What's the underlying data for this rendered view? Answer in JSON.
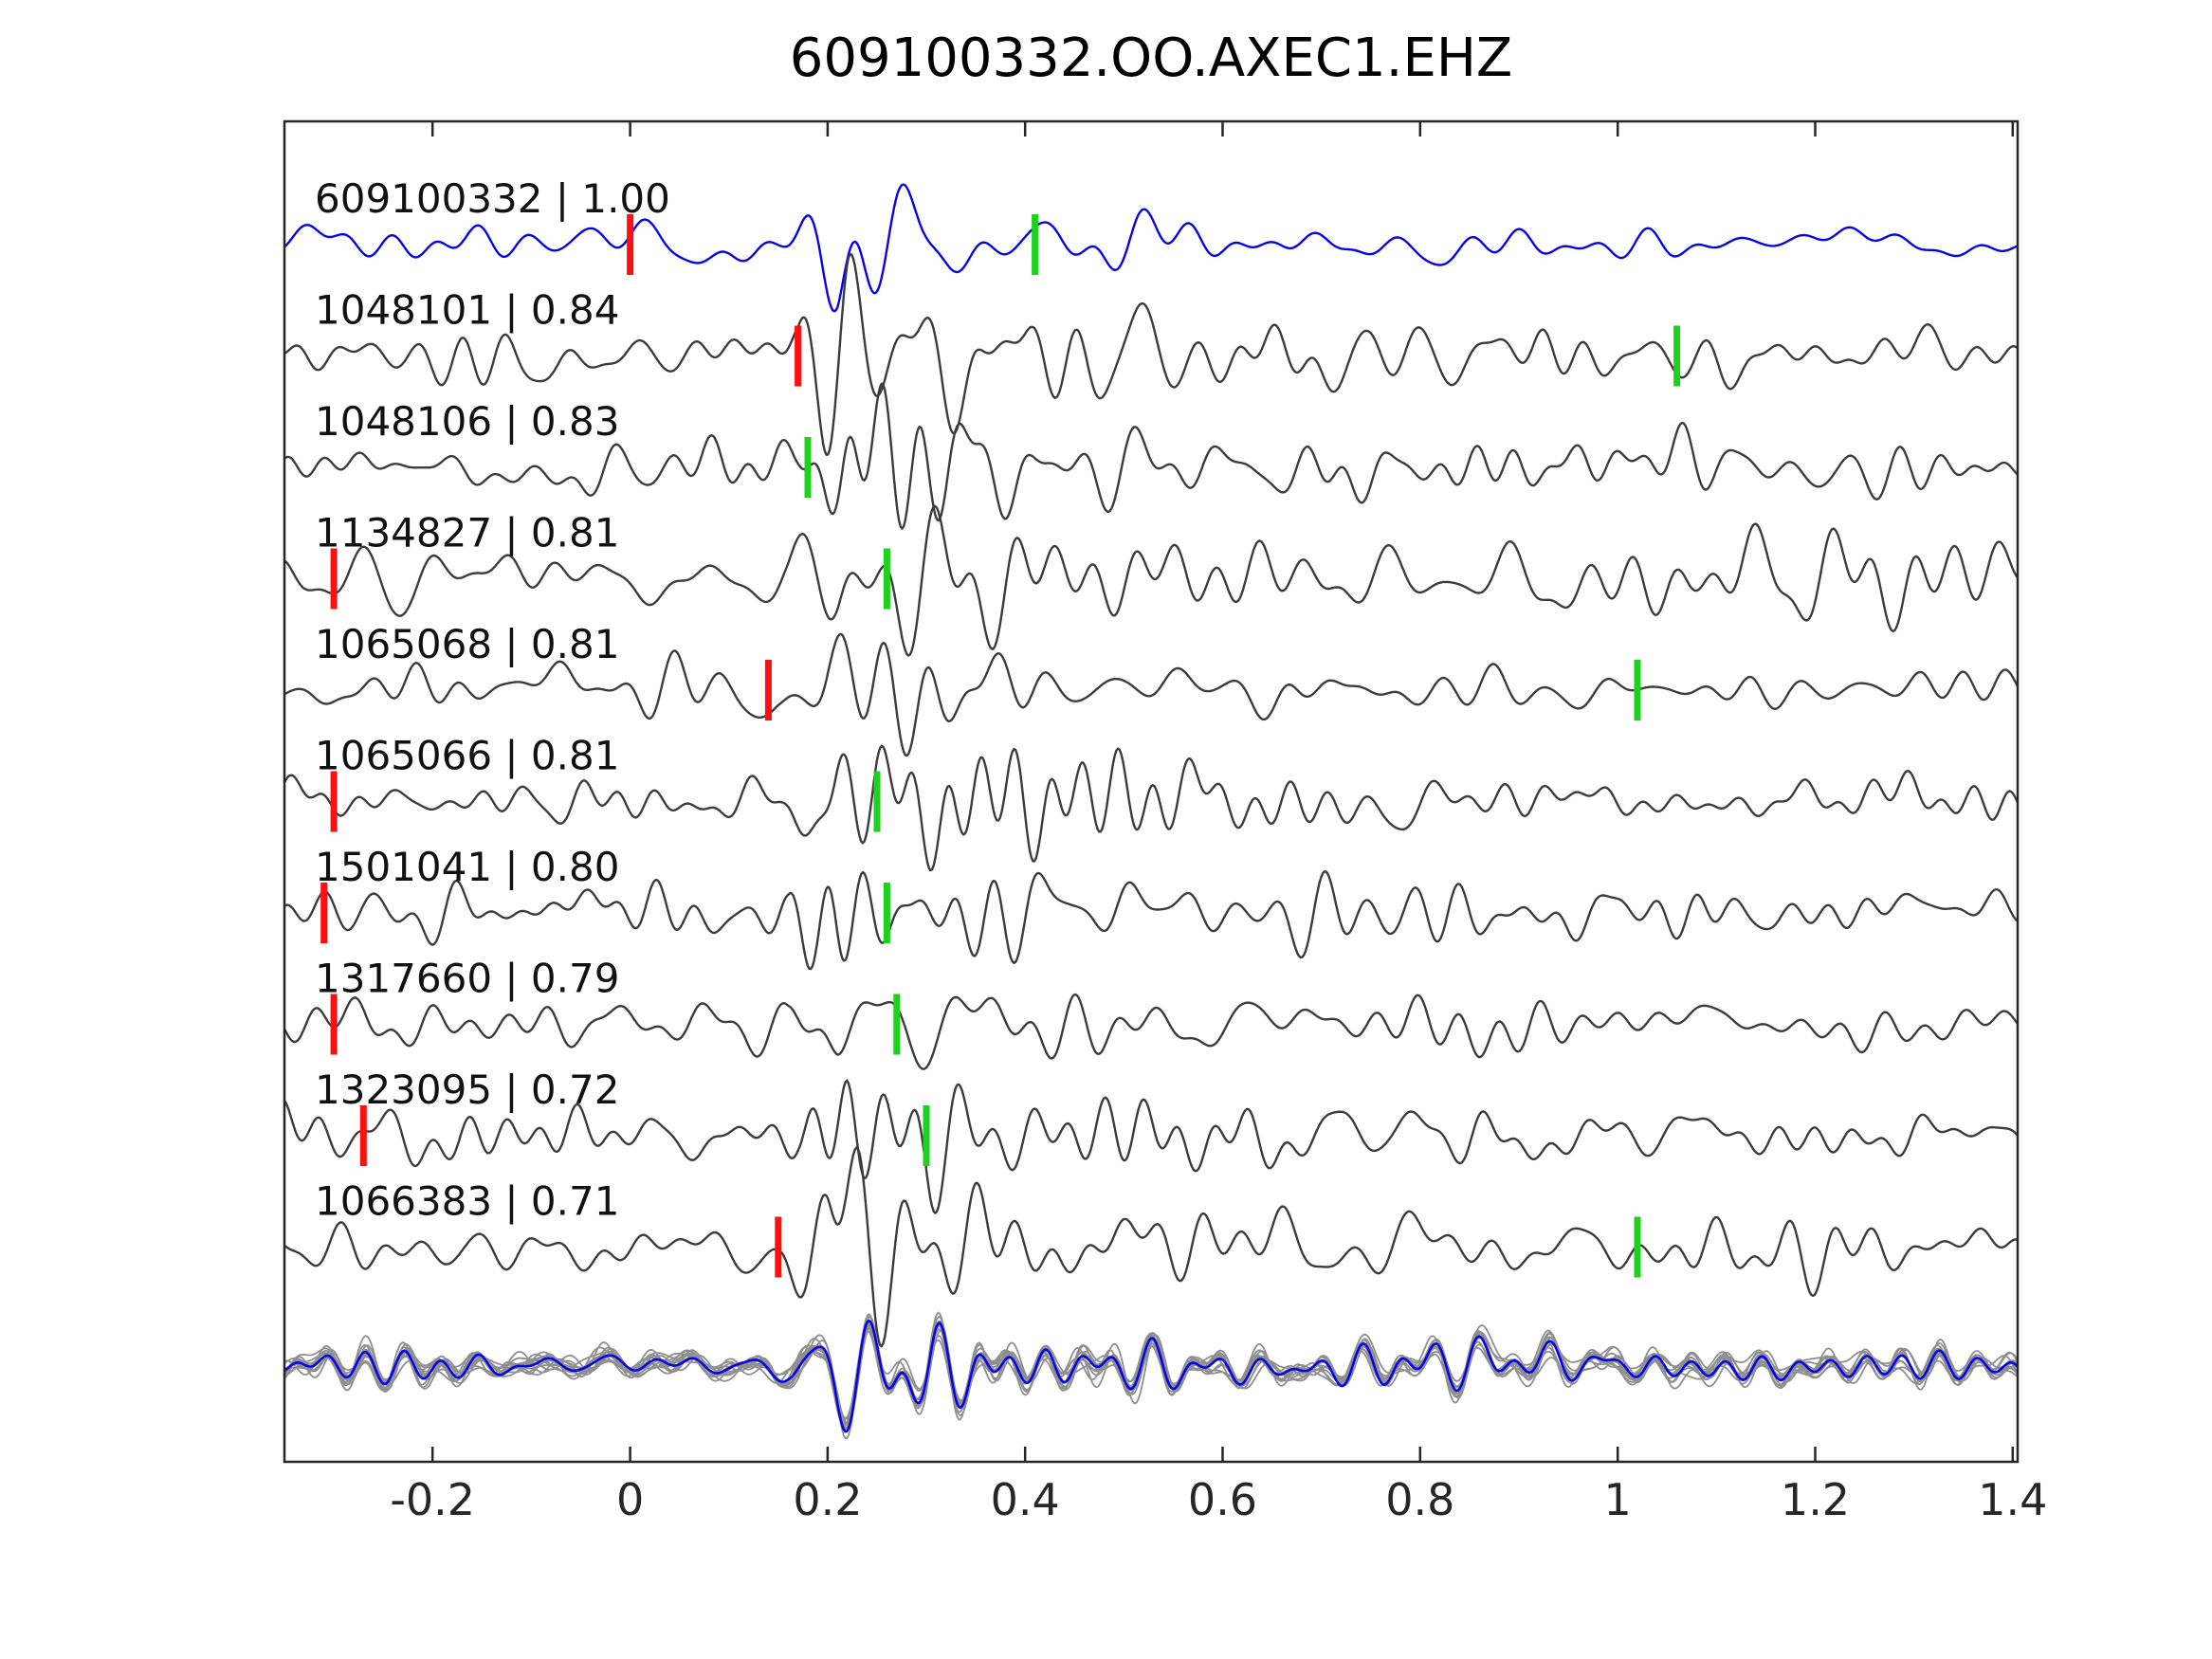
{
  "title": "609100332.OO.AXEC1.EHZ",
  "colors": {
    "template_trace": "#0505e8",
    "detection_trace": "#3c3c3c",
    "pick_red": "#ff0f0f",
    "pick_green": "#1fd11f",
    "stack_member": "#8f8f8f",
    "stack_mean": "#0505e8",
    "axis": "#262626",
    "label_text": "#111111",
    "tick_text": "#262626"
  },
  "chart_data": {
    "type": "line",
    "title": "609100332.OO.AXEC1.EHZ",
    "xlabel": "",
    "ylabel": "",
    "xlim": [
      -0.35,
      1.405
    ],
    "x_ticks": [
      -0.2,
      0,
      0.2,
      0.4,
      0.6,
      0.8,
      1,
      1.2,
      1.4
    ],
    "x_tick_labels": [
      "-0.2",
      "0",
      "0.2",
      "0.4",
      "0.6",
      "0.8",
      "1",
      "1.2",
      "1.4"
    ],
    "grid": false,
    "legend": "none",
    "traces": [
      {
        "id": "609100332",
        "label": "609100332 | 1.00",
        "correlation": 1.0,
        "role": "template",
        "pick_red": 0.0,
        "pick_green": 0.41
      },
      {
        "id": "1048101",
        "label": "1048101 | 0.84",
        "correlation": 0.84,
        "role": "detection",
        "pick_red": 0.17,
        "pick_green": 1.06
      },
      {
        "id": "1048106",
        "label": "1048106 | 0.83",
        "correlation": 0.83,
        "role": "detection",
        "pick_red": null,
        "pick_green": 0.18
      },
      {
        "id": "1134827",
        "label": "1134827 | 0.81",
        "correlation": 0.81,
        "role": "detection",
        "pick_red": -0.3,
        "pick_green": 0.26
      },
      {
        "id": "1065068",
        "label": "1065068 | 0.81",
        "correlation": 0.81,
        "role": "detection",
        "pick_red": 0.14,
        "pick_green": 1.02
      },
      {
        "id": "1065066",
        "label": "1065066 | 0.81",
        "correlation": 0.81,
        "role": "detection",
        "pick_red": -0.3,
        "pick_green": 0.25
      },
      {
        "id": "1501041",
        "label": "1501041 | 0.80",
        "correlation": 0.8,
        "role": "detection",
        "pick_red": -0.31,
        "pick_green": 0.26
      },
      {
        "id": "1317660",
        "label": "1317660 | 0.79",
        "correlation": 0.79,
        "role": "detection",
        "pick_red": -0.3,
        "pick_green": 0.27
      },
      {
        "id": "1323095",
        "label": "1323095 | 0.72",
        "correlation": 0.72,
        "role": "detection",
        "pick_red": -0.27,
        "pick_green": 0.3
      },
      {
        "id": "1066383",
        "label": "1066383 | 0.71",
        "correlation": 0.71,
        "role": "detection",
        "pick_red": 0.15,
        "pick_green": 1.02
      }
    ],
    "stack": {
      "description": "overlay of aligned detection waveforms with mean stack",
      "member_count": 12
    }
  }
}
